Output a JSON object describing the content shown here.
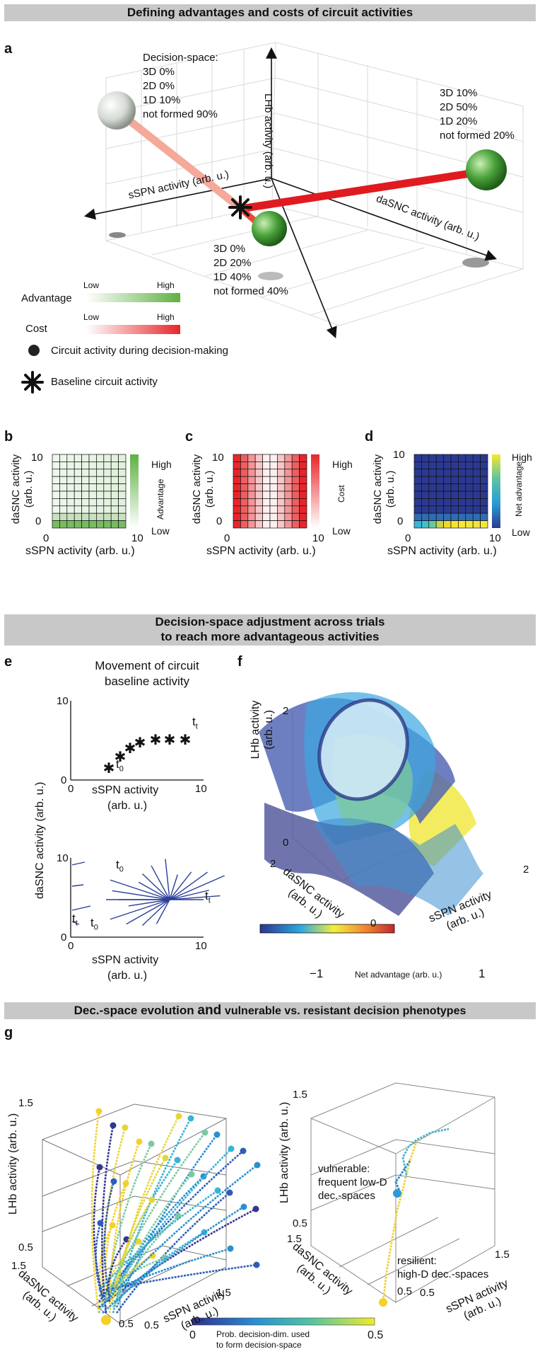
{
  "banners": {
    "b1": "Defining advantages and costs of circuit activities",
    "b2a": "Decision-space adjustment across trials",
    "b2b": "to reach more advantageous activities",
    "b3_part1": "Dec.-space evolution",
    "b3_part2": "and",
    "b3_part3": "vulnerable vs. resistant decision phenotypes"
  },
  "panel_labels": [
    "a",
    "b",
    "c",
    "d",
    "e",
    "f",
    "g"
  ],
  "panel_a": {
    "axis_lhb": "LHb activity (arb. u.)",
    "axis_sspn": "sSPN activity (arb. u.)",
    "axis_dasnc": "daSNC activity (arb. u.)",
    "ann1": [
      "Decision-space:",
      "3D 0%",
      "2D 0%",
      "1D 10%",
      "not formed 90%"
    ],
    "ann2": [
      "3D 10%",
      "2D 50%",
      "1D 20%",
      "not formed 20%"
    ],
    "ann3": [
      "3D 0%",
      "2D 20%",
      "1D 40%",
      "not formed 40%"
    ],
    "legend": {
      "advantage": "Advantage",
      "cost": "Cost",
      "low": "Low",
      "high": "High",
      "circuit": "Circuit activity during decision-making",
      "baseline": "Baseline circuit activity"
    },
    "colors": {
      "advantage": "#5fb043",
      "cost": "#e8262a"
    }
  },
  "heatmaps": {
    "ylabel": [
      "daSNC activity",
      "(arb. u.)"
    ],
    "xlabel": "sSPN activity (arb. u.)",
    "tick0": "0",
    "tick10": "10",
    "b_colorbar": {
      "label": "Advantage",
      "high": "High",
      "low": "Low"
    },
    "c_colorbar": {
      "label": "Cost",
      "high": "High",
      "low": "Low"
    },
    "d_colorbar": {
      "label": "Net advantage",
      "high": "High",
      "low": "Low"
    }
  },
  "panel_e": {
    "title": [
      "Movement of circuit",
      "baseline activity"
    ],
    "ylabel": "daSNC activity (arb. u.)",
    "xlabel": [
      "sSPN activity",
      "(arb. u.)"
    ],
    "tick0": "0",
    "tick10": "10",
    "t0": "t",
    "t0_sub": "0",
    "tt": "t",
    "tt_sub": "t"
  },
  "panel_f": {
    "ylabel": [
      "LHb activity",
      "(arb. u.)"
    ],
    "xlabel": [
      "sSPN activity",
      "(arb. u.)"
    ],
    "zlabel": [
      "daSNC activity",
      "(arb. u.)"
    ],
    "ticks": {
      "y2": "2",
      "y0": "0",
      "z2": "2",
      "z0": "0",
      "x2": "2"
    },
    "colorbar": {
      "label": "Net advantage (arb. u.)",
      "min": "−1",
      "max": "1"
    }
  },
  "panel_g": {
    "ylabel": "LHb activity (arb. u.)",
    "zlabel": [
      "daSNC activity",
      "(arb. u.)"
    ],
    "xlabel": [
      "sSPN activity",
      "(arb. u.)"
    ],
    "ticks": {
      "t15": "1.5",
      "t05": "0.5"
    },
    "ann_vulnerable": [
      "vulnerable:",
      "frequent low-D",
      "dec.-spaces"
    ],
    "ann_resilient": [
      "resilient:",
      "high-D dec.-spaces"
    ],
    "colorbar": {
      "label1": "Prob. decision-dim. used",
      "label2": "to form decision-space",
      "min": "0",
      "max": "0.5"
    }
  }
}
